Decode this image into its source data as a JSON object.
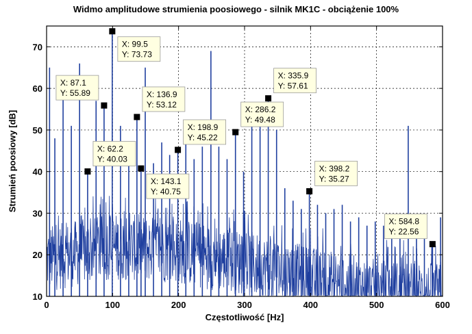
{
  "chart_data": {
    "type": "line",
    "title": "Widmo amplitudowe strumienia poosiowego - silnik MK1C - obciążenie 100%",
    "xlabel": "Częstotliwość [Hz]",
    "ylabel": "Strumień poosiowy [dB]",
    "xlim": [
      0,
      600
    ],
    "ylim": [
      10,
      75
    ],
    "xticks": [
      0,
      100,
      200,
      300,
      400,
      500,
      600
    ],
    "yticks": [
      10,
      20,
      30,
      40,
      50,
      60,
      70
    ],
    "grid": true,
    "line_color": "#1f3f9f",
    "marker_color": "#000000",
    "tip_fill": "#ffffe1",
    "peaks": [
      {
        "x": 4.5,
        "y": 65
      },
      {
        "x": 12.5,
        "y": 48
      },
      {
        "x": 25,
        "y": 58
      },
      {
        "x": 37.5,
        "y": 51
      },
      {
        "x": 50,
        "y": 66
      },
      {
        "x": 62.2,
        "y": 40.03
      },
      {
        "x": 75,
        "y": 57
      },
      {
        "x": 87.1,
        "y": 55.89
      },
      {
        "x": 99.5,
        "y": 73.73
      },
      {
        "x": 112,
        "y": 51
      },
      {
        "x": 124.5,
        "y": 45
      },
      {
        "x": 136.9,
        "y": 53.12
      },
      {
        "x": 143.1,
        "y": 40.75
      },
      {
        "x": 149.5,
        "y": 65
      },
      {
        "x": 162,
        "y": 42
      },
      {
        "x": 174.5,
        "y": 47
      },
      {
        "x": 186.5,
        "y": 44
      },
      {
        "x": 198.9,
        "y": 45.22
      },
      {
        "x": 211,
        "y": 50
      },
      {
        "x": 223.5,
        "y": 43
      },
      {
        "x": 236,
        "y": 46
      },
      {
        "x": 249,
        "y": 69
      },
      {
        "x": 261,
        "y": 46
      },
      {
        "x": 273.5,
        "y": 43
      },
      {
        "x": 286.2,
        "y": 49.48
      },
      {
        "x": 298.5,
        "y": 40
      },
      {
        "x": 311,
        "y": 52
      },
      {
        "x": 323.5,
        "y": 54
      },
      {
        "x": 335.9,
        "y": 57.61
      },
      {
        "x": 348.5,
        "y": 50
      },
      {
        "x": 361,
        "y": 36
      },
      {
        "x": 373.5,
        "y": 33
      },
      {
        "x": 386,
        "y": 31
      },
      {
        "x": 398.2,
        "y": 35.27
      },
      {
        "x": 410.5,
        "y": 32
      },
      {
        "x": 423,
        "y": 30
      },
      {
        "x": 435.5,
        "y": 31
      },
      {
        "x": 448,
        "y": 32
      },
      {
        "x": 460.5,
        "y": 28
      },
      {
        "x": 473,
        "y": 29
      },
      {
        "x": 485.5,
        "y": 27
      },
      {
        "x": 498,
        "y": 28
      },
      {
        "x": 510.5,
        "y": 27
      },
      {
        "x": 523,
        "y": 25
      },
      {
        "x": 535.5,
        "y": 24
      },
      {
        "x": 548,
        "y": 51
      },
      {
        "x": 560.5,
        "y": 26
      },
      {
        "x": 572.5,
        "y": 28
      },
      {
        "x": 584.8,
        "y": 22.56
      },
      {
        "x": 597,
        "y": 29
      }
    ],
    "noise_floor": [
      {
        "x": 0,
        "y": 25
      },
      {
        "x": 100,
        "y": 28
      },
      {
        "x": 200,
        "y": 27
      },
      {
        "x": 300,
        "y": 24
      },
      {
        "x": 400,
        "y": 20
      },
      {
        "x": 500,
        "y": 17
      },
      {
        "x": 600,
        "y": 16
      }
    ],
    "datatips": [
      {
        "x": 62.2,
        "y": 40.03,
        "xtext": "X: 62.2",
        "ytext": "Y: 40.03",
        "place": "above-right"
      },
      {
        "x": 87.1,
        "y": 55.89,
        "xtext": "X: 87.1",
        "ytext": "Y: 55.89",
        "place": "above-left"
      },
      {
        "x": 99.5,
        "y": 73.73,
        "xtext": "X: 99.5",
        "ytext": "Y: 73.73",
        "place": "below-right"
      },
      {
        "x": 136.9,
        "y": 53.12,
        "xtext": "X: 136.9",
        "ytext": "Y: 53.12",
        "place": "above-right"
      },
      {
        "x": 143.1,
        "y": 40.75,
        "xtext": "X: 143.1",
        "ytext": "Y: 40.75",
        "place": "below-right"
      },
      {
        "x": 198.9,
        "y": 45.22,
        "xtext": "X: 198.9",
        "ytext": "Y: 45.22",
        "place": "above-right"
      },
      {
        "x": 286.2,
        "y": 49.48,
        "xtext": "X: 286.2",
        "ytext": "Y: 49.48",
        "place": "above-right"
      },
      {
        "x": 335.9,
        "y": 57.61,
        "xtext": "X: 335.9",
        "ytext": "Y: 57.61",
        "place": "above-right"
      },
      {
        "x": 398.2,
        "y": 35.27,
        "xtext": "X: 398.2",
        "ytext": "Y: 35.27",
        "place": "above-right"
      },
      {
        "x": 584.8,
        "y": 22.56,
        "xtext": "X: 584.8",
        "ytext": "Y: 22.56",
        "place": "above-left"
      }
    ]
  }
}
